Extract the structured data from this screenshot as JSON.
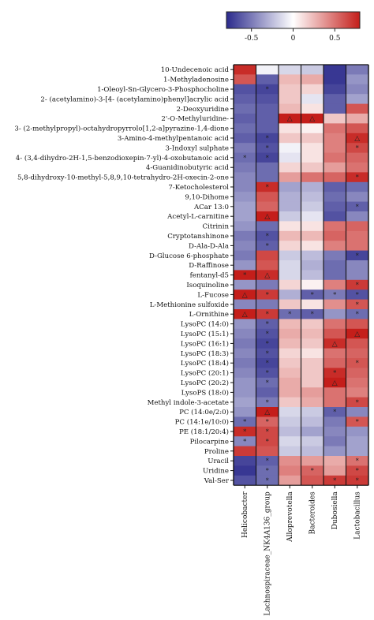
{
  "chart_data": {
    "type": "heatmap",
    "colorbar": {
      "min": -0.8,
      "max": 0.8,
      "ticks": [
        -0.5,
        0,
        0.5
      ],
      "tick_labels": [
        "-0.5",
        "0",
        "0.5"
      ],
      "low_color": "#2b2a8c",
      "mid_color": "#ffffff",
      "high_color": "#c41e1a"
    },
    "columns": [
      "Helicobacter",
      "Lachnospiraceae_NK4A136_group",
      "Alloprevotella",
      "Bacteroides",
      "Dubosiella",
      "Lactobacillus"
    ],
    "rows": [
      "10-Undecenoic acid",
      "1-Methyladenosine",
      "1-Oleoyl-Sn-Glycero-3-Phosphocholine",
      "2- (acetylamino)-3-[4- (acetylamino)phenyl]acrylic acid",
      "2-Deoxyuridine",
      "2'-O-Methyluridine-",
      "3- (2-methylpropyl)-octahydropyrrolo[1,2-a]pyrazine-1,4-dione",
      "3-Amino-4-methylpentanoic acid",
      "3-Indoxyl sulphate",
      "4- (3,4-dihydro-2H-1,5-benzodioxepin-7-yl)-4-oxobutanoic acid",
      "4-Guanidinobutyric acid",
      "5,8-dihydroxy-10-methyl-5,8,9,10-tetrahydro-2H-oxecin-2-one",
      "7-Ketocholesterol",
      "9,10-Dihome",
      "ACar 13:0",
      "Acetyl-L-carnitine",
      "Citrinin",
      "Cryptotanshinone",
      "D-Ala-D-Ala",
      "D-Glucose 6-phosphate",
      "D-Raffinose",
      "fentanyl-d5",
      "Isoquinoline",
      "L-Fucose",
      "L-Methionine sulfoxide",
      "L-Ornithine",
      "LysoPC (14:0)",
      "LysoPC (15:1)",
      "LysoPC (16:1)",
      "LysoPC (18:3)",
      "LysoPC (18:4)",
      "LysoPC (20:1)",
      "LysoPC (20:2)",
      "LysoPS (18:0)",
      "Methyl indole-3-acetate",
      "PC (14:0e/2:0)",
      "PC (14:1e/10:0)",
      "PE (18:1/20:4)",
      "Pilocarpine",
      "Proline",
      "Uracil",
      "Uridine",
      "Val-Ser"
    ],
    "values": [
      [
        0.75,
        -0.05,
        -0.15,
        -0.2,
        -0.75,
        -0.5
      ],
      [
        0.6,
        -0.6,
        0.25,
        0.3,
        -0.75,
        -0.4
      ],
      [
        -0.65,
        -0.7,
        0.2,
        0.15,
        -0.7,
        -0.45
      ],
      [
        -0.6,
        -0.65,
        0.2,
        -0.1,
        -0.6,
        -0.35
      ],
      [
        -0.55,
        -0.6,
        0.25,
        0.1,
        -0.6,
        0.6
      ],
      [
        -0.6,
        -0.6,
        0.85,
        0.85,
        0.2,
        0.3
      ],
      [
        -0.55,
        -0.6,
        0.1,
        0.05,
        0.5,
        0.6
      ],
      [
        -0.6,
        -0.7,
        0.2,
        0.2,
        0.45,
        0.75
      ],
      [
        -0.5,
        -0.65,
        -0.05,
        0.1,
        0.45,
        0.65
      ],
      [
        -0.55,
        -0.7,
        -0.1,
        0.1,
        0.5,
        0.55
      ],
      [
        -0.5,
        -0.55,
        0.15,
        0.2,
        0.35,
        0.5
      ],
      [
        -0.45,
        -0.55,
        0.35,
        0.5,
        0.55,
        0.75
      ],
      [
        -0.45,
        0.75,
        -0.35,
        -0.3,
        -0.6,
        -0.55
      ],
      [
        -0.4,
        0.6,
        -0.3,
        -0.25,
        -0.55,
        -0.45
      ],
      [
        -0.35,
        0.55,
        -0.3,
        -0.2,
        -0.6,
        -0.6
      ],
      [
        -0.35,
        0.8,
        -0.2,
        -0.1,
        -0.65,
        -0.45
      ],
      [
        -0.4,
        -0.55,
        0.1,
        0.1,
        0.5,
        0.55
      ],
      [
        -0.5,
        -0.65,
        0.25,
        0.25,
        0.55,
        0.5
      ],
      [
        -0.45,
        -0.6,
        0.15,
        0.1,
        0.45,
        0.5
      ],
      [
        -0.5,
        0.65,
        -0.2,
        -0.25,
        -0.5,
        -0.7
      ],
      [
        -0.4,
        0.6,
        -0.15,
        -0.3,
        -0.55,
        -0.45
      ],
      [
        0.8,
        0.75,
        -0.15,
        -0.25,
        -0.55,
        -0.45
      ],
      [
        -0.4,
        -0.5,
        0.15,
        0.05,
        0.45,
        0.7
      ],
      [
        0.8,
        0.7,
        -0.3,
        -0.6,
        -0.5,
        -0.65
      ],
      [
        -0.45,
        -0.5,
        0.2,
        0.1,
        0.4,
        0.6
      ],
      [
        0.85,
        0.7,
        -0.55,
        -0.6,
        -0.4,
        -0.55
      ],
      [
        -0.4,
        -0.6,
        0.25,
        0.2,
        0.5,
        0.6
      ],
      [
        -0.45,
        -0.65,
        0.3,
        0.25,
        0.6,
        0.8
      ],
      [
        -0.5,
        -0.7,
        0.25,
        0.2,
        0.75,
        0.6
      ],
      [
        -0.45,
        -0.65,
        0.15,
        0.1,
        0.5,
        0.55
      ],
      [
        -0.5,
        -0.7,
        0.2,
        0.2,
        0.55,
        0.6
      ],
      [
        -0.45,
        -0.65,
        0.25,
        0.2,
        0.75,
        0.55
      ],
      [
        -0.4,
        -0.55,
        0.3,
        0.2,
        0.8,
        0.5
      ],
      [
        -0.4,
        -0.6,
        0.3,
        0.35,
        0.5,
        0.45
      ],
      [
        -0.35,
        -0.5,
        0.2,
        0.3,
        0.5,
        0.65
      ],
      [
        -0.4,
        0.8,
        -0.15,
        -0.2,
        -0.6,
        -0.45
      ],
      [
        -0.55,
        0.55,
        -0.2,
        -0.25,
        -0.5,
        0.6
      ],
      [
        0.75,
        0.65,
        -0.25,
        -0.35,
        -0.45,
        -0.4
      ],
      [
        -0.45,
        0.65,
        -0.15,
        -0.2,
        -0.5,
        -0.35
      ],
      [
        0.7,
        0.6,
        -0.2,
        -0.25,
        -0.4,
        -0.35
      ],
      [
        -0.7,
        -0.6,
        0.4,
        0.35,
        0.3,
        0.5
      ],
      [
        -0.75,
        -0.55,
        0.45,
        0.55,
        0.35,
        0.65
      ],
      [
        -0.65,
        -0.55,
        0.35,
        0.6,
        0.7,
        0.7
      ]
    ],
    "markers": [
      [
        2,
        1,
        "*"
      ],
      [
        5,
        2,
        "△"
      ],
      [
        5,
        3,
        "△"
      ],
      [
        7,
        1,
        "*"
      ],
      [
        7,
        5,
        "△"
      ],
      [
        8,
        1,
        "*"
      ],
      [
        8,
        5,
        "*"
      ],
      [
        9,
        0,
        "*"
      ],
      [
        9,
        1,
        "*"
      ],
      [
        11,
        5,
        "*"
      ],
      [
        12,
        1,
        "*"
      ],
      [
        14,
        5,
        "*"
      ],
      [
        15,
        1,
        "△"
      ],
      [
        17,
        1,
        "*"
      ],
      [
        18,
        1,
        "*"
      ],
      [
        19,
        5,
        "*"
      ],
      [
        21,
        0,
        "*"
      ],
      [
        21,
        1,
        "△"
      ],
      [
        22,
        5,
        "*"
      ],
      [
        23,
        0,
        "△"
      ],
      [
        23,
        1,
        "*"
      ],
      [
        23,
        3,
        "*"
      ],
      [
        23,
        4,
        "*"
      ],
      [
        23,
        5,
        "*"
      ],
      [
        24,
        5,
        "*"
      ],
      [
        25,
        0,
        "△"
      ],
      [
        25,
        1,
        "*"
      ],
      [
        25,
        2,
        "*"
      ],
      [
        25,
        3,
        "*"
      ],
      [
        25,
        5,
        "*"
      ],
      [
        26,
        1,
        "*"
      ],
      [
        27,
        1,
        "*"
      ],
      [
        27,
        5,
        "△"
      ],
      [
        28,
        1,
        "*"
      ],
      [
        28,
        4,
        "△"
      ],
      [
        29,
        1,
        "*"
      ],
      [
        30,
        1,
        "*"
      ],
      [
        30,
        5,
        "*"
      ],
      [
        31,
        1,
        "*"
      ],
      [
        31,
        4,
        "*"
      ],
      [
        32,
        1,
        "*"
      ],
      [
        32,
        4,
        "△"
      ],
      [
        34,
        1,
        "*"
      ],
      [
        34,
        5,
        "*"
      ],
      [
        35,
        1,
        "△"
      ],
      [
        35,
        4,
        "*"
      ],
      [
        36,
        0,
        "*"
      ],
      [
        36,
        1,
        "*"
      ],
      [
        36,
        5,
        "*"
      ],
      [
        37,
        0,
        "*"
      ],
      [
        37,
        1,
        "*"
      ],
      [
        38,
        0,
        "*"
      ],
      [
        38,
        1,
        "*"
      ],
      [
        40,
        1,
        "*"
      ],
      [
        40,
        5,
        "*"
      ],
      [
        41,
        1,
        "*"
      ],
      [
        41,
        3,
        "*"
      ],
      [
        41,
        5,
        "*"
      ],
      [
        42,
        1,
        "*"
      ],
      [
        42,
        4,
        "*"
      ],
      [
        42,
        5,
        "*"
      ]
    ],
    "title": "",
    "xlabel": "",
    "ylabel": ""
  }
}
